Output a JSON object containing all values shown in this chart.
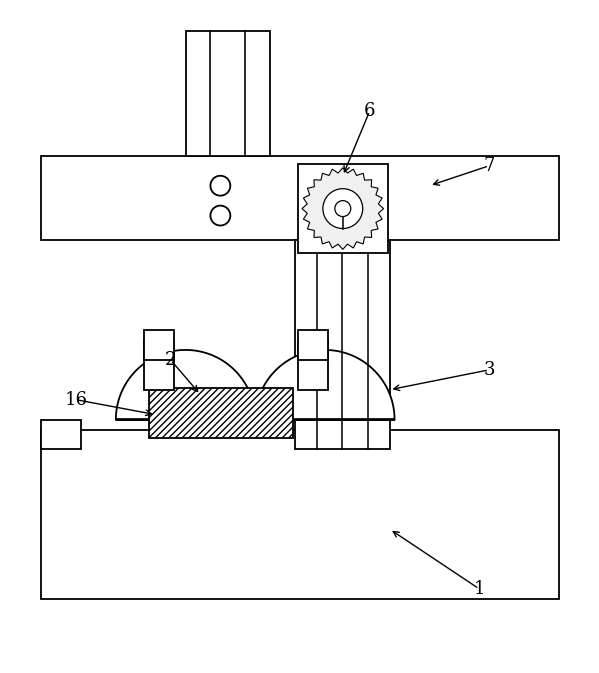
{
  "bg_color": "#ffffff",
  "line_color": "#000000",
  "fig_width": 5.99,
  "fig_height": 6.73
}
